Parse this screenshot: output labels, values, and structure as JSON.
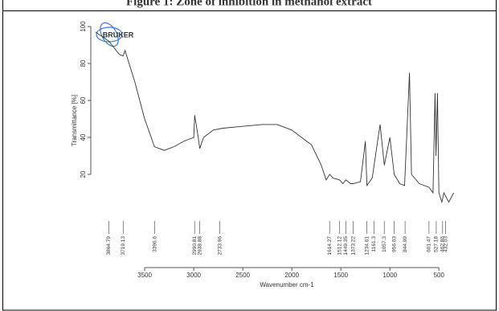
{
  "chart_data": {
    "type": "line",
    "title": "Figure 1: Zone of inhibition in methanol extract",
    "logo": "BRUKER",
    "x_label": "Wavenumber cm-1",
    "y_label": "Transmittance [%]",
    "xlim": [
      4000,
      330
    ],
    "ylim": [
      0,
      100
    ],
    "xticks": [
      3500,
      3000,
      2500,
      2000,
      1500,
      1000,
      500
    ],
    "yticks": [
      20,
      40,
      60,
      80,
      100
    ],
    "series": [
      {
        "name": "Transmittance",
        "color": "#333333",
        "x": [
          4000,
          3864,
          3760,
          3719,
          3700,
          3600,
          3500,
          3400,
          3300,
          3200,
          3100,
          3000,
          2990,
          2960,
          2938,
          2900,
          2800,
          2700,
          2500,
          2300,
          2150,
          2000,
          1900,
          1800,
          1700,
          1650,
          1614,
          1580,
          1512,
          1480,
          1449,
          1400,
          1373,
          1300,
          1250,
          1234,
          1180,
          1100,
          1057,
          1000,
          956,
          900,
          850,
          800,
          780,
          700,
          600,
          560,
          540,
          530,
          515,
          500,
          470,
          450,
          400,
          350
        ],
        "values": [
          97,
          92,
          85,
          84,
          87,
          70,
          50,
          35,
          33,
          35,
          38,
          40,
          52,
          42,
          34,
          40,
          44,
          45,
          46,
          47,
          47,
          44,
          40,
          36,
          25,
          17,
          20,
          18,
          17,
          15,
          17,
          15,
          15,
          16,
          38,
          14,
          18,
          47,
          25,
          40,
          20,
          15,
          14,
          75,
          20,
          15,
          13,
          10,
          64,
          30,
          64,
          10,
          5,
          10,
          5,
          10
        ]
      }
    ],
    "peaks": [
      3864.79,
      3719.13,
      3396.6,
      2990.81,
      2938.88,
      2733.96,
      1614.27,
      1512.12,
      1449.35,
      1373.22,
      1234.61,
      1161.3,
      1057.3,
      956.03,
      844.99,
      601.47,
      527.18,
      462.86,
      432.03
    ]
  }
}
